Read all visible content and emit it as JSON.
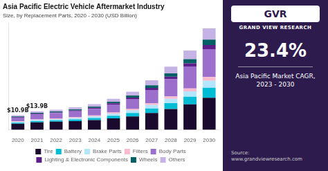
{
  "chart_data": {
    "type": "bar",
    "title": "Asia Pacific Electric Vehicle Aftermarket Industry",
    "subtitle": "Size, by Replacement Parts, 2020 - 2030 (USD Billion)",
    "categories": [
      "2020",
      "2021",
      "2022",
      "2023",
      "2024",
      "2025",
      "2026",
      "2027",
      "2028",
      "2029",
      "2030"
    ],
    "series": [
      {
        "name": "Tire",
        "color": "#1a0a2e",
        "values": [
          4.5,
          5.5,
          6.0,
          6.5,
          7.2,
          8.5,
          10.0,
          12.5,
          15.5,
          19.0,
          24.0
        ]
      },
      {
        "name": "Battery",
        "color": "#00bcd4",
        "values": [
          0.8,
          1.0,
          1.1,
          1.3,
          1.6,
          2.0,
          2.6,
          3.5,
          4.5,
          5.8,
          7.5
        ]
      },
      {
        "name": "Brake Parts",
        "color": "#b3e5fc",
        "values": [
          0.6,
          0.8,
          0.9,
          1.0,
          1.2,
          1.5,
          1.9,
          2.5,
          3.2,
          4.0,
          5.2
        ]
      },
      {
        "name": "Filters",
        "color": "#f8bbd0",
        "values": [
          0.4,
          0.5,
          0.5,
          0.6,
          0.7,
          0.9,
          1.1,
          1.4,
          1.8,
          2.2,
          2.9
        ]
      },
      {
        "name": "Body Parts",
        "color": "#9c6fcc",
        "values": [
          2.8,
          3.8,
          4.0,
          4.5,
          5.0,
          6.0,
          7.5,
          10.0,
          13.0,
          16.5,
          21.0
        ]
      },
      {
        "name": "Lighting & Electronic Components",
        "color": "#5c1f8a",
        "values": [
          0.3,
          0.4,
          0.5,
          0.6,
          0.7,
          0.9,
          1.1,
          1.5,
          1.9,
          2.4,
          3.1
        ]
      },
      {
        "name": "Wheels",
        "color": "#006064",
        "values": [
          0.5,
          0.7,
          0.7,
          0.8,
          1.0,
          1.2,
          1.5,
          2.0,
          2.5,
          3.1,
          4.0
        ]
      },
      {
        "name": "Others",
        "color": "#c5b3e6",
        "values": [
          1.0,
          1.2,
          1.3,
          1.5,
          1.8,
          2.2,
          2.8,
          3.8,
          5.0,
          6.5,
          8.5
        ]
      }
    ],
    "stacked": true,
    "ylim": [
      0,
      80
    ],
    "grid": false,
    "legend": "bottom",
    "tick_labels": "x",
    "annotations": [
      {
        "text": "$10.9B",
        "x": "2020",
        "y": 10.9
      },
      {
        "text": "$13.9B",
        "x": "2021",
        "y": 13.9
      }
    ],
    "panel": {
      "color": "#2d1b4e",
      "logo": "GVR",
      "brand": "GRAND VIEW RESEARCH",
      "value": "23.4%",
      "caption": "Asia Pacific Market CAGR,\n2023 - 2030",
      "source": "Source:\nwww.grandviewresearch.com"
    }
  }
}
